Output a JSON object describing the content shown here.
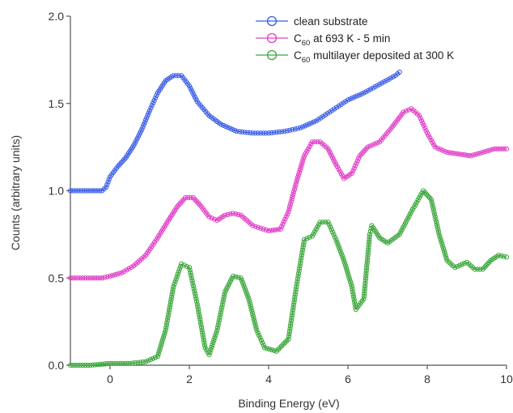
{
  "chart_data": {
    "type": "line",
    "xlabel": "Binding Energy (eV)",
    "ylabel": "Counts (arbitrary units)",
    "xlim": [
      -1,
      10
    ],
    "ylim": [
      0,
      2.0
    ],
    "x_ticks": [
      0,
      2,
      4,
      6,
      8,
      10
    ],
    "x_tick_labels": [
      "0",
      "2",
      "4",
      "6",
      "8",
      "10"
    ],
    "y_ticks": [
      0.0,
      0.5,
      1.0,
      1.5,
      2.0
    ],
    "y_tick_labels": [
      "0.0",
      "0.5",
      "1.0",
      "1.5",
      "2.0"
    ],
    "grid": false,
    "legend_position": "top-right",
    "marker": "open-circle",
    "series": [
      {
        "name": "clean substrate",
        "legend_main": "clean substrate",
        "legend_sub": "",
        "legend_rest": "",
        "color": "#3b5ee8",
        "points": [
          [
            -1.0,
            1.0
          ],
          [
            -0.5,
            1.0
          ],
          [
            -0.2,
            1.0
          ],
          [
            -0.1,
            1.02
          ],
          [
            0.0,
            1.08
          ],
          [
            0.2,
            1.14
          ],
          [
            0.4,
            1.19
          ],
          [
            0.6,
            1.26
          ],
          [
            0.8,
            1.35
          ],
          [
            1.0,
            1.46
          ],
          [
            1.2,
            1.56
          ],
          [
            1.4,
            1.63
          ],
          [
            1.6,
            1.66
          ],
          [
            1.8,
            1.66
          ],
          [
            2.0,
            1.6
          ],
          [
            2.2,
            1.51
          ],
          [
            2.5,
            1.43
          ],
          [
            2.8,
            1.38
          ],
          [
            3.2,
            1.34
          ],
          [
            3.6,
            1.33
          ],
          [
            4.0,
            1.33
          ],
          [
            4.4,
            1.34
          ],
          [
            4.8,
            1.36
          ],
          [
            5.2,
            1.4
          ],
          [
            5.6,
            1.46
          ],
          [
            6.0,
            1.52
          ],
          [
            6.4,
            1.56
          ],
          [
            6.8,
            1.61
          ],
          [
            7.2,
            1.66
          ],
          [
            7.3,
            1.68
          ]
        ]
      },
      {
        "name": "C60 at 693 K - 5 min",
        "legend_main": "C",
        "legend_sub": "60",
        "legend_rest": " at 693 K - 5 min",
        "color": "#e040c8",
        "points": [
          [
            -1.0,
            0.5
          ],
          [
            -0.5,
            0.5
          ],
          [
            -0.2,
            0.5
          ],
          [
            0.0,
            0.51
          ],
          [
            0.3,
            0.53
          ],
          [
            0.6,
            0.57
          ],
          [
            0.9,
            0.63
          ],
          [
            1.2,
            0.73
          ],
          [
            1.5,
            0.84
          ],
          [
            1.7,
            0.91
          ],
          [
            1.9,
            0.96
          ],
          [
            2.1,
            0.96
          ],
          [
            2.3,
            0.91
          ],
          [
            2.5,
            0.85
          ],
          [
            2.7,
            0.83
          ],
          [
            2.9,
            0.86
          ],
          [
            3.1,
            0.87
          ],
          [
            3.3,
            0.86
          ],
          [
            3.6,
            0.8
          ],
          [
            4.0,
            0.77
          ],
          [
            4.3,
            0.78
          ],
          [
            4.5,
            0.88
          ],
          [
            4.7,
            1.05
          ],
          [
            4.9,
            1.2
          ],
          [
            5.1,
            1.28
          ],
          [
            5.3,
            1.28
          ],
          [
            5.5,
            1.24
          ],
          [
            5.7,
            1.15
          ],
          [
            5.9,
            1.07
          ],
          [
            6.1,
            1.1
          ],
          [
            6.3,
            1.2
          ],
          [
            6.5,
            1.25
          ],
          [
            6.8,
            1.28
          ],
          [
            7.1,
            1.36
          ],
          [
            7.4,
            1.45
          ],
          [
            7.6,
            1.47
          ],
          [
            7.8,
            1.43
          ],
          [
            8.0,
            1.33
          ],
          [
            8.2,
            1.25
          ],
          [
            8.5,
            1.22
          ],
          [
            8.8,
            1.21
          ],
          [
            9.1,
            1.2
          ],
          [
            9.4,
            1.22
          ],
          [
            9.7,
            1.24
          ],
          [
            10.0,
            1.24
          ]
        ]
      },
      {
        "name": "C60 multilayer deposited at 300 K",
        "legend_main": "C",
        "legend_sub": "60",
        "legend_rest": " multilayer deposited at 300 K",
        "color": "#3ca83c",
        "points": [
          [
            -1.0,
            0.0
          ],
          [
            -0.5,
            0.0
          ],
          [
            0.0,
            0.01
          ],
          [
            0.5,
            0.01
          ],
          [
            0.9,
            0.02
          ],
          [
            1.2,
            0.05
          ],
          [
            1.4,
            0.2
          ],
          [
            1.6,
            0.45
          ],
          [
            1.8,
            0.58
          ],
          [
            2.0,
            0.56
          ],
          [
            2.2,
            0.35
          ],
          [
            2.4,
            0.1
          ],
          [
            2.5,
            0.06
          ],
          [
            2.7,
            0.2
          ],
          [
            2.9,
            0.42
          ],
          [
            3.1,
            0.51
          ],
          [
            3.3,
            0.5
          ],
          [
            3.5,
            0.38
          ],
          [
            3.7,
            0.2
          ],
          [
            3.9,
            0.1
          ],
          [
            4.2,
            0.08
          ],
          [
            4.5,
            0.15
          ],
          [
            4.7,
            0.45
          ],
          [
            4.9,
            0.72
          ],
          [
            5.1,
            0.74
          ],
          [
            5.3,
            0.82
          ],
          [
            5.5,
            0.82
          ],
          [
            5.7,
            0.72
          ],
          [
            5.9,
            0.6
          ],
          [
            6.1,
            0.45
          ],
          [
            6.2,
            0.32
          ],
          [
            6.4,
            0.38
          ],
          [
            6.55,
            0.75
          ],
          [
            6.6,
            0.8
          ],
          [
            6.8,
            0.73
          ],
          [
            7.0,
            0.7
          ],
          [
            7.3,
            0.75
          ],
          [
            7.6,
            0.88
          ],
          [
            7.9,
            1.0
          ],
          [
            8.1,
            0.95
          ],
          [
            8.3,
            0.75
          ],
          [
            8.5,
            0.6
          ],
          [
            8.7,
            0.56
          ],
          [
            9.0,
            0.59
          ],
          [
            9.2,
            0.55
          ],
          [
            9.4,
            0.55
          ],
          [
            9.6,
            0.6
          ],
          [
            9.8,
            0.63
          ],
          [
            10.0,
            0.62
          ]
        ]
      }
    ]
  }
}
